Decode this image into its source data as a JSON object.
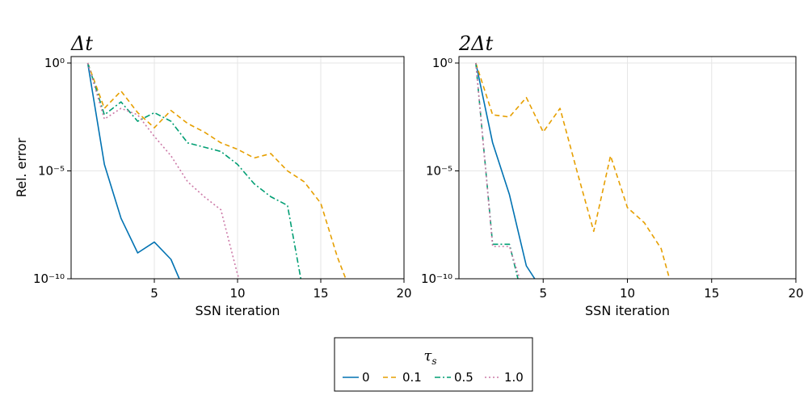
{
  "chart_data": {
    "type": "line",
    "y_scale": "log10",
    "panels": [
      {
        "title": "Δt",
        "xlabel": "SSN iteration",
        "ylabel": "Rel. error",
        "xlim": [
          0,
          20
        ],
        "ylim_exponent": [
          -10,
          0.3
        ],
        "xticks": [
          "5",
          "10",
          "15",
          "20"
        ],
        "xtick_values": [
          5,
          10,
          15,
          20
        ],
        "yticks": [
          "10⁰",
          "10⁻⁵",
          "10⁻¹⁰"
        ],
        "ytick_exponents": [
          0,
          -5,
          -10
        ],
        "series": [
          {
            "name": "0",
            "log10_values": [
              [
                1,
                0
              ],
              [
                2,
                -4.7
              ],
              [
                3,
                -7.2
              ],
              [
                4,
                -8.8
              ],
              [
                5,
                -8.3
              ],
              [
                6,
                -9.1
              ],
              [
                6.5,
                -10.0
              ]
            ]
          },
          {
            "name": "0.1",
            "log10_values": [
              [
                1,
                0
              ],
              [
                2,
                -2.1
              ],
              [
                3,
                -1.3
              ],
              [
                4,
                -2.3
              ],
              [
                5,
                -3.0
              ],
              [
                6,
                -2.2
              ],
              [
                7,
                -2.8
              ],
              [
                8,
                -3.2
              ],
              [
                9,
                -3.7
              ],
              [
                10,
                -4.0
              ],
              [
                11,
                -4.4
              ],
              [
                12,
                -4.2
              ],
              [
                13,
                -5.0
              ],
              [
                14,
                -5.5
              ],
              [
                15,
                -6.5
              ],
              [
                16,
                -9.0
              ],
              [
                16.5,
                -10.0
              ]
            ]
          },
          {
            "name": "0.5",
            "log10_values": [
              [
                1,
                0
              ],
              [
                2,
                -2.4
              ],
              [
                3,
                -1.8
              ],
              [
                4,
                -2.7
              ],
              [
                5,
                -2.3
              ],
              [
                6,
                -2.7
              ],
              [
                7,
                -3.7
              ],
              [
                8,
                -3.9
              ],
              [
                9,
                -4.1
              ],
              [
                10,
                -4.7
              ],
              [
                11,
                -5.6
              ],
              [
                12,
                -6.2
              ],
              [
                13,
                -6.6
              ],
              [
                13.8,
                -10.0
              ]
            ]
          },
          {
            "name": "1.0",
            "log10_values": [
              [
                1,
                0
              ],
              [
                2,
                -2.6
              ],
              [
                3,
                -2.1
              ],
              [
                4,
                -2.4
              ],
              [
                5,
                -3.4
              ],
              [
                6,
                -4.3
              ],
              [
                7,
                -5.5
              ],
              [
                8,
                -6.2
              ],
              [
                9,
                -6.8
              ],
              [
                10,
                -9.8
              ],
              [
                10.1,
                -10.0
              ]
            ]
          }
        ]
      },
      {
        "title": "2Δt",
        "xlabel": "SSN iteration",
        "ylabel": "",
        "xlim": [
          0,
          20
        ],
        "ylim_exponent": [
          -10,
          0.3
        ],
        "xticks": [
          "5",
          "10",
          "15",
          "20"
        ],
        "xtick_values": [
          5,
          10,
          15,
          20
        ],
        "yticks": [
          "10⁰",
          "10⁻⁵",
          "10⁻¹⁰"
        ],
        "ytick_exponents": [
          0,
          -5,
          -10
        ],
        "series": [
          {
            "name": "0",
            "log10_values": [
              [
                1,
                0
              ],
              [
                2,
                -3.7
              ],
              [
                3,
                -6.1
              ],
              [
                4,
                -9.4
              ],
              [
                4.5,
                -10.0
              ]
            ]
          },
          {
            "name": "0.1",
            "log10_values": [
              [
                1,
                0
              ],
              [
                2,
                -2.4
              ],
              [
                3,
                -2.5
              ],
              [
                4,
                -1.6
              ],
              [
                5,
                -3.2
              ],
              [
                6,
                -2.1
              ],
              [
                7,
                -5.0
              ],
              [
                8,
                -7.8
              ],
              [
                9,
                -4.3
              ],
              [
                10,
                -6.7
              ],
              [
                11,
                -7.4
              ],
              [
                12,
                -8.6
              ],
              [
                12.5,
                -10.0
              ]
            ]
          },
          {
            "name": "0.5",
            "log10_values": [
              [
                1,
                0
              ],
              [
                2,
                -8.4
              ],
              [
                2.5,
                -8.4
              ],
              [
                3,
                -8.4
              ],
              [
                3.5,
                -10.0
              ]
            ]
          },
          {
            "name": "1.0",
            "log10_values": [
              [
                1,
                0
              ],
              [
                2,
                -8.5
              ],
              [
                3,
                -8.5
              ],
              [
                3.6,
                -10.0
              ]
            ]
          }
        ]
      }
    ],
    "legend": {
      "title": "τ",
      "title_subscript": "s",
      "position": "bottom-center",
      "entries": [
        "0",
        "0.1",
        "0.5",
        "1.0"
      ]
    },
    "series_styles": [
      {
        "name": "0",
        "color": "#0072B2",
        "dash": "solid"
      },
      {
        "name": "0.1",
        "color": "#E69F00",
        "dash": "dash"
      },
      {
        "name": "0.5",
        "color": "#009E73",
        "dash": "dashdot"
      },
      {
        "name": "1.0",
        "color": "#CC79A7",
        "dash": "dot"
      }
    ],
    "grid": true
  }
}
